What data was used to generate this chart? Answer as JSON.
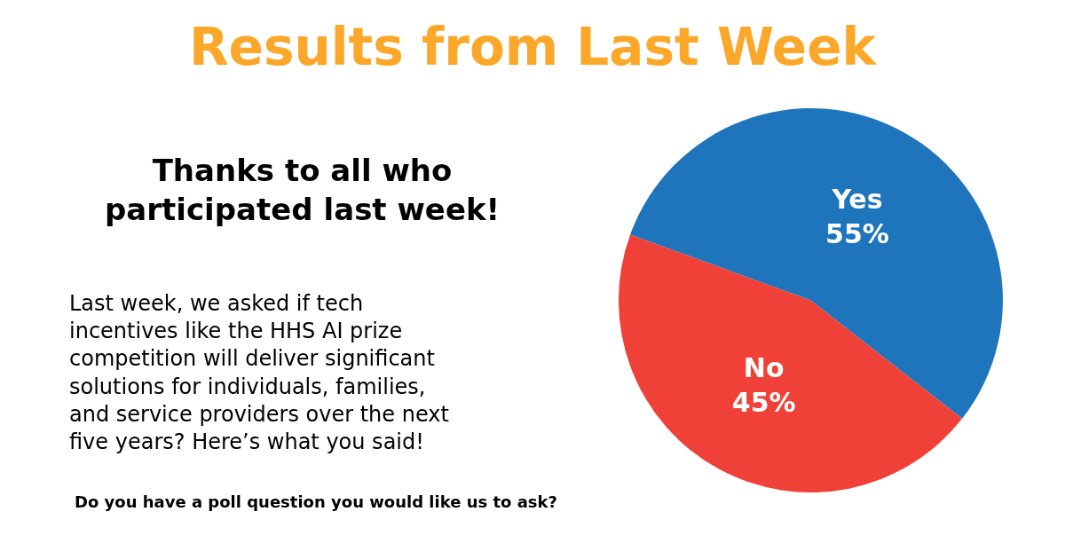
{
  "chart_data": {
    "type": "pie",
    "title": "Results from Last Week",
    "subtitle": "Thanks to all who\nparticipated last week!",
    "annotations": [
      "Last week, we asked if tech\nincentives like the HHS AI prize\ncompetition will deliver significant\nsolutions for individuals, families,\nand service providers over the next\nfive years? Here’s what you said!",
      "Do you have a poll question you would like us to ask?"
    ],
    "categories": [
      "Yes",
      "No"
    ],
    "values": [
      55,
      45
    ],
    "colors": [
      "#1f75bc",
      "#ef4137"
    ],
    "value_labels": [
      "55%",
      "45%"
    ]
  }
}
